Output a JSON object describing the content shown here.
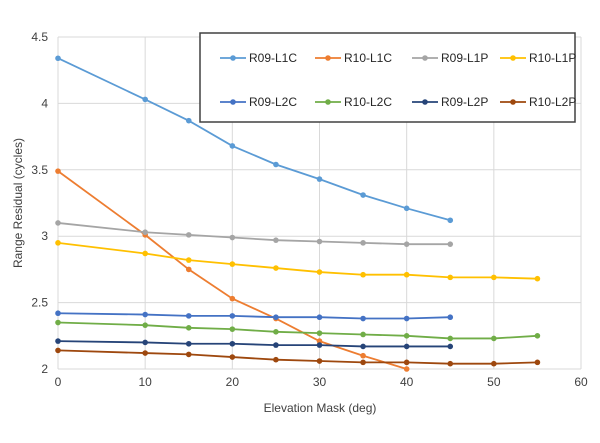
{
  "chart_data": {
    "type": "line",
    "title": "",
    "xlabel": "Elevation Mask (deg)",
    "ylabel": "Range Residual (cycles)",
    "xlim": [
      0,
      60
    ],
    "ylim": [
      2,
      4.5
    ],
    "xticks": [
      "0",
      "10",
      "20",
      "30",
      "40",
      "50",
      "60"
    ],
    "yticks": [
      "2",
      "2.5",
      "3",
      "3.5",
      "4",
      "4.5"
    ],
    "grid": true,
    "legend_position": "top-right",
    "series": [
      {
        "name": "R09-L1C",
        "color": "#5B9BD5",
        "x": [
          0,
          10,
          15,
          20,
          25,
          30,
          35,
          40,
          45
        ],
        "values": [
          4.34,
          4.03,
          3.87,
          3.68,
          3.54,
          3.43,
          3.31,
          3.21,
          3.12
        ]
      },
      {
        "name": "R10-L1C",
        "color": "#ED7D31",
        "x": [
          0,
          10,
          15,
          20,
          25,
          30,
          35,
          40
        ],
        "values": [
          3.49,
          3.01,
          2.75,
          2.53,
          2.38,
          2.21,
          2.1,
          2.0
        ]
      },
      {
        "name": "R09-L1P",
        "color": "#A5A5A5",
        "x": [
          0,
          10,
          15,
          20,
          25,
          30,
          35,
          40,
          45
        ],
        "values": [
          3.1,
          3.03,
          3.01,
          2.99,
          2.97,
          2.96,
          2.95,
          2.94,
          2.94
        ]
      },
      {
        "name": "R10-L1P",
        "color": "#FFC000",
        "x": [
          0,
          10,
          15,
          20,
          25,
          30,
          35,
          40,
          45,
          50,
          55
        ],
        "values": [
          2.95,
          2.87,
          2.82,
          2.79,
          2.76,
          2.73,
          2.71,
          2.71,
          2.69,
          2.69,
          2.68
        ]
      },
      {
        "name": "R09-L2C",
        "color": "#4472C4",
        "x": [
          0,
          10,
          15,
          20,
          25,
          30,
          35,
          40,
          45
        ],
        "values": [
          2.42,
          2.41,
          2.4,
          2.4,
          2.39,
          2.39,
          2.38,
          2.38,
          2.39
        ]
      },
      {
        "name": "R10-L2C",
        "color": "#70AD47",
        "x": [
          0,
          10,
          15,
          20,
          25,
          30,
          35,
          40,
          45,
          50,
          55
        ],
        "values": [
          2.35,
          2.33,
          2.31,
          2.3,
          2.28,
          2.27,
          2.26,
          2.25,
          2.23,
          2.23,
          2.25
        ]
      },
      {
        "name": "R09-L2P",
        "color": "#264478",
        "x": [
          0,
          10,
          15,
          20,
          25,
          30,
          35,
          40,
          45
        ],
        "values": [
          2.21,
          2.2,
          2.19,
          2.19,
          2.18,
          2.18,
          2.17,
          2.17,
          2.17
        ]
      },
      {
        "name": "R10-L2P",
        "color": "#9E480E",
        "x": [
          0,
          10,
          15,
          20,
          25,
          30,
          35,
          40,
          45,
          50,
          55
        ],
        "values": [
          2.14,
          2.12,
          2.11,
          2.09,
          2.07,
          2.06,
          2.05,
          2.05,
          2.04,
          2.04,
          2.05
        ]
      }
    ]
  }
}
